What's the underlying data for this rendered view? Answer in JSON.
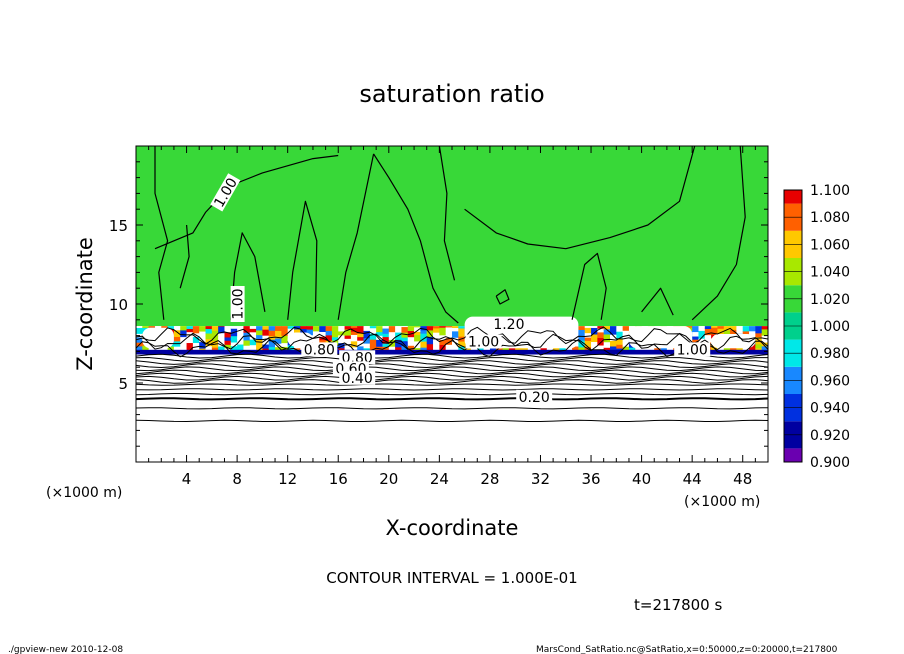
{
  "chart_data": {
    "type": "heatmap",
    "title": "saturation ratio",
    "xlabel": "X-coordinate",
    "ylabel": "Z-coordinate",
    "x_unit": "(×1000 m)",
    "y_unit": "(×1000 m)",
    "xlim": [
      0,
      50
    ],
    "ylim": [
      0,
      20
    ],
    "x_ticks": [
      4,
      8,
      12,
      16,
      20,
      24,
      28,
      32,
      36,
      40,
      44,
      48
    ],
    "y_ticks": [
      5,
      10,
      15
    ],
    "colorbar": {
      "levels": [
        "0.900",
        "0.920",
        "0.940",
        "0.960",
        "0.980",
        "1.000",
        "1.020",
        "1.040",
        "1.060",
        "1.080",
        "1.100"
      ],
      "colors": [
        "#6a00b0",
        "#0000a0",
        "#0030e0",
        "#1888ff",
        "#00e8e8",
        "#00d08c",
        "#38d838",
        "#a8e800",
        "#ffc800",
        "#ff6000",
        "#e80000",
        "#ff9090"
      ],
      "lower": 0.9,
      "upper": 1.1
    },
    "contour_labels": [
      {
        "text": "1.00",
        "x": 7.2,
        "y": 17.0,
        "rot": -60
      },
      {
        "text": "1.00",
        "x": 8.2,
        "y": 10.0,
        "rot": -90
      },
      {
        "text": "1.20",
        "x": 29.5,
        "y": 8.6,
        "rot": 0
      },
      {
        "text": "1.00",
        "x": 27.5,
        "y": 7.5,
        "rot": 0
      },
      {
        "text": "1.00",
        "x": 44.0,
        "y": 7.0,
        "rot": 0
      },
      {
        "text": "0.80",
        "x": 14.5,
        "y": 7.0,
        "rot": 0
      },
      {
        "text": "0.80",
        "x": 17.5,
        "y": 6.5,
        "rot": 0
      },
      {
        "text": "0.60",
        "x": 17.0,
        "y": 5.8,
        "rot": 0
      },
      {
        "text": "0.40",
        "x": 17.5,
        "y": 5.2,
        "rot": 0
      },
      {
        "text": "0.20",
        "x": 31.5,
        "y": 4.0,
        "rot": 0
      }
    ],
    "contour_interval": "CONTOUR INTERVAL = 1.000E-01",
    "time": "t=217800 s"
  },
  "footer": {
    "left": "./gpview-new   2010-12-08",
    "right": "MarsCond_SatRatio.nc@SatRatio,x=0:50000,z=0:20000,t=217800"
  }
}
